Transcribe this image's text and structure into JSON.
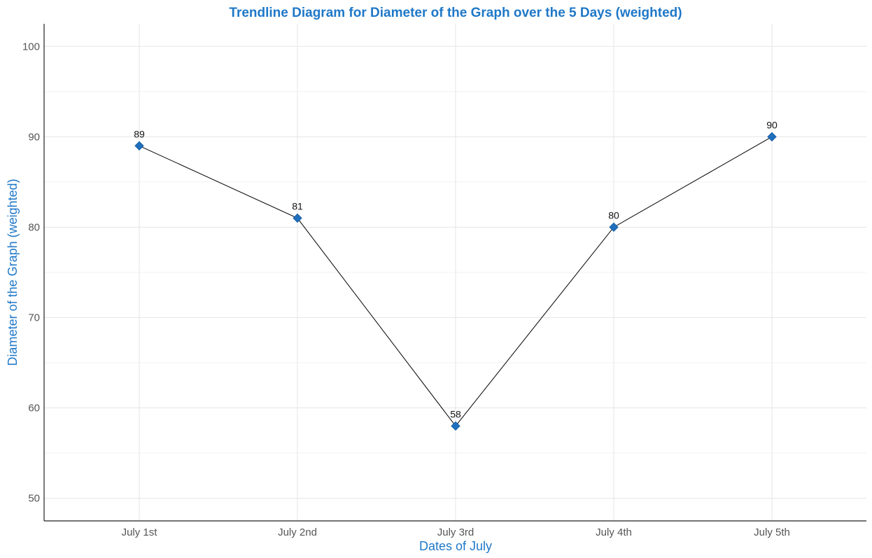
{
  "chart_data": {
    "type": "line",
    "title": "Trendline Diagram for Diameter of the Graph over the 5 Days (weighted)",
    "xlabel": "Dates of July",
    "ylabel": "Diameter of the Graph (weighted)",
    "categories": [
      "July 1st",
      "July 2nd",
      "July 3rd",
      "July 4th",
      "July 5th"
    ],
    "series": [
      {
        "values": [
          89,
          81,
          58,
          80,
          90
        ]
      }
    ],
    "data_labels": [
      "89",
      "81",
      "58",
      "80",
      "90"
    ],
    "ylim": [
      47.5,
      102.5
    ],
    "yticks": [
      50,
      60,
      70,
      80,
      90,
      100
    ],
    "ytick_labels": [
      "50",
      "60",
      "70",
      "80",
      "90",
      "100"
    ],
    "grid": true,
    "marker": "diamond",
    "colors": {
      "title": "#1f78c8",
      "axis_title": "#1f78c8",
      "marker": "#1f6fbf",
      "line": "#000000"
    }
  }
}
